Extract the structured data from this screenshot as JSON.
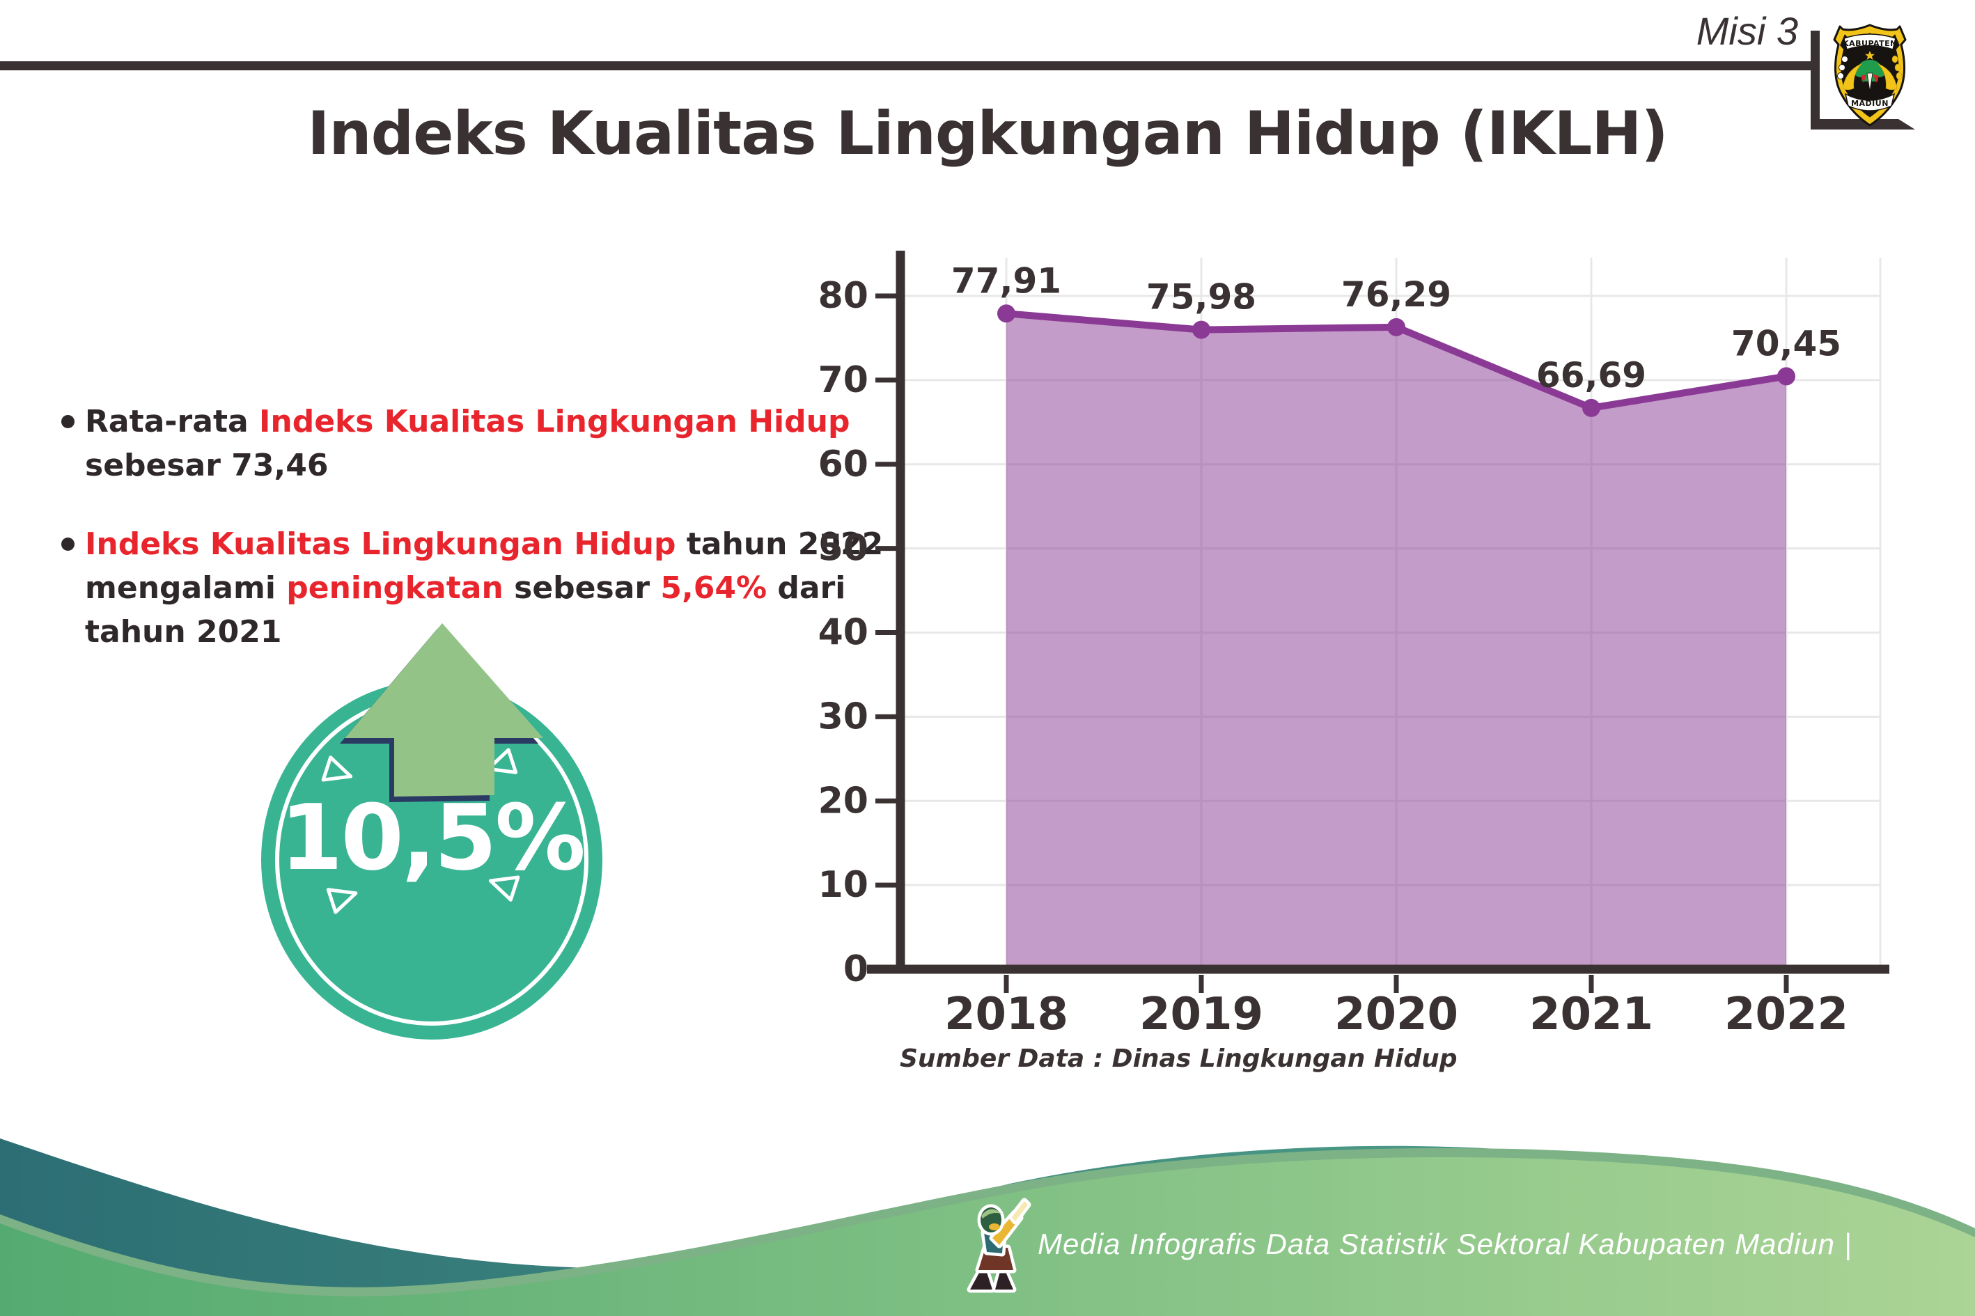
{
  "header": {
    "misi_label": "Misi 3",
    "logo": {
      "top_text": "KABUPATEN",
      "bottom_text": "MADIUN"
    }
  },
  "title": "Indeks Kualitas Lingkungan Hidup (IKLH)",
  "bullets": [
    {
      "segments": [
        {
          "t": "Rata-rata ",
          "c": "dark"
        },
        {
          "t": "Indeks Kualitas Lingkungan Hidup",
          "c": "red"
        },
        {
          "t": " sebesar 73,46",
          "c": "dark"
        }
      ]
    },
    {
      "segments": [
        {
          "t": "Indeks Kualitas Lingkungan Hidup",
          "c": "red"
        },
        {
          "t": " tahun 2022 mengalami ",
          "c": "dark"
        },
        {
          "t": "peningkatan",
          "c": "red"
        },
        {
          "t": " sebesar ",
          "c": "dark"
        },
        {
          "t": "5,64%",
          "c": "red"
        },
        {
          "t": " dari tahun 2021",
          "c": "dark"
        }
      ]
    }
  ],
  "badge": {
    "value": "10,5%"
  },
  "chart_data": {
    "type": "area",
    "title": "Indeks Kualitas Lingkungan Hidup (IKLH)",
    "categories": [
      "2018",
      "2019",
      "2020",
      "2021",
      "2022"
    ],
    "values": [
      77.91,
      75.98,
      76.29,
      66.69,
      70.45
    ],
    "point_labels": [
      "77,91",
      "75,98",
      "76,29",
      "66,69",
      "70,45"
    ],
    "ylim": [
      0,
      80
    ],
    "ytick_step": 10,
    "grid": true,
    "legend_position": "none",
    "source_note": "Sumber Data : Dinas Lingkungan Hidup",
    "colors": {
      "line": "#8a3a94",
      "fill": "rgba(138,58,148,0.5)",
      "marker": "#8a3a94",
      "axis": "#3a3132",
      "grid": "#e8e8e8",
      "label": "#3a3132"
    }
  },
  "footer": {
    "credit_text": "Media Infografis Data Statistik Sektoral Kabupaten Madiun |"
  },
  "palette": {
    "dark_text": "#3a3132",
    "red_accent": "#e8252c",
    "badge_teal": "#38b493",
    "arrow_green": "#94c387",
    "arrow_outline_navy": "#2b3a63",
    "wave_teal_left": "#2c6e74",
    "wave_teal_right": "#57a98c",
    "wave_green_left": "#54ab71",
    "wave_green_right": "#abd496",
    "wave_green_rim": "#7cb286",
    "logo_yellow": "#f2c318"
  }
}
